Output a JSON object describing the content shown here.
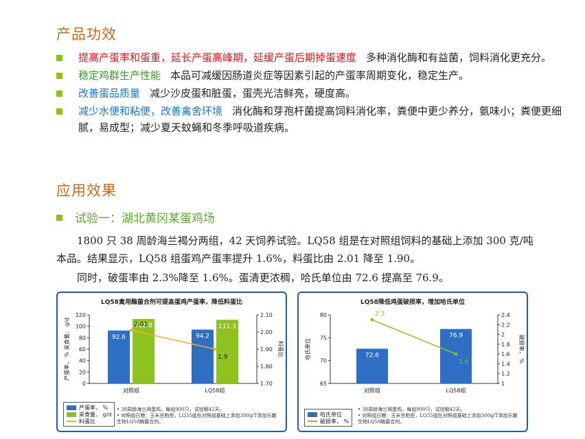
{
  "sections": {
    "effects_title": "产品功效",
    "application_title": "应用效果"
  },
  "bullets": [
    {
      "highlight": "提高产蛋率和蛋重，延长产蛋高峰期，延缓产蛋后期掉蛋速度",
      "color": "#e0151b",
      "text": "多种消化酶和有益菌，饲料消化更充分。"
    },
    {
      "highlight": "稳定鸡群生产性能",
      "color": "#3a9a2a",
      "text": "本品可减缓因肠道炎症等因素引起的产蛋率周期变化，稳定生产。"
    },
    {
      "highlight": "改善蛋品质量",
      "color": "#1c74c0",
      "text": "减少沙皮蛋和脏蛋，蛋壳光洁鲜亮，硬度高。"
    },
    {
      "highlight": "减少水便和粘便，改善禽舍环境",
      "color": "#1c74c0",
      "text": "消化酶和芽孢杆菌提高饲料消化率，粪便中更少养分，氨味小；粪便更细腻，易成型；减少夏天蚊蝇和冬季呼吸道疾病。"
    }
  ],
  "trial": {
    "title": "试验一：湖北黄冈某蛋鸡场",
    "para1": "1800 只 38 周龄海兰褐分两组，42 天饲养试验。LQ58 组是在对照组饲料的基础上添加 300 克/吨本品。结果显示，LQ58 组蛋鸡产蛋率提升 1.6%，料蛋比由 2.01 降至 1.90。",
    "para2": "同时，破蛋率由 2.3%降至 1.6%。蛋清更浓稠，哈氏单位由 72.6 提高至 76.9。"
  },
  "chart_data": [
    {
      "type": "bar",
      "title": "LQ58禽用酶菌合剂可提高蛋鸡产蛋率，降低料蛋比",
      "categories": [
        "对照组",
        "LQ58组"
      ],
      "series": [
        {
          "name": "产蛋率，%",
          "values": [
            92.6,
            94.2
          ],
          "color": "#2e6fc4",
          "axis": "left"
        },
        {
          "name": "采食量，g/d",
          "values": [
            112.8,
            111.3
          ],
          "color": "#8dc21f",
          "axis": "left"
        },
        {
          "name": "料蛋比",
          "values": [
            2.01,
            1.9
          ],
          "color": "#f5b41e",
          "axis": "right",
          "kind": "line"
        }
      ],
      "ylabel": "产蛋率， %  采食量， g/d",
      "y2label": "料蛋比",
      "ylim": [
        0,
        120
      ],
      "yticks": [
        "0",
        "20",
        "40",
        "60",
        "80",
        "100",
        "120"
      ],
      "y2lim": [
        1.7,
        2.1
      ],
      "y2ticks": [
        "1.70",
        "1.80",
        "1.90",
        "2.00",
        "2.10"
      ],
      "legend": [
        {
          "label": "产蛋率， %",
          "color": "#2e6fc4"
        },
        {
          "label": "采食量， g/d",
          "color": "#8dc21f"
        },
        {
          "label": "料蛋比",
          "color": "#f5b41e"
        }
      ],
      "notes": [
        "• 38周龄海兰褐蛋鸡，每组900只，试验期42天。",
        "• 对照组日粮：玉米豆粕型，LQ35组在对照组基础上添加300g/T添加乐趣生物LQ58酶菌合剂。"
      ]
    },
    {
      "type": "bar",
      "title": "LQ58降低鸡蛋破损率，增加哈氏单位",
      "categories": [
        "对照组",
        "LQ58组"
      ],
      "series": [
        {
          "name": "哈氏单位",
          "values": [
            72.6,
            76.9
          ],
          "color": "#2e6fc4",
          "axis": "left"
        },
        {
          "name": "破损率， %",
          "values": [
            2.3,
            1.6
          ],
          "color": "#8dc21f",
          "axis": "right",
          "kind": "line"
        }
      ],
      "ylabel": "哈氏单位",
      "y2label": "破损率， %",
      "ylim": [
        65,
        80
      ],
      "yticks": [
        "65",
        "70",
        "75",
        "80"
      ],
      "y2lim": [
        1,
        2.4
      ],
      "y2ticks": [
        "1",
        "1.2",
        "1.4",
        "1.6",
        "1.8",
        "2",
        "2.2",
        "2.4"
      ],
      "legend": [
        {
          "label": "哈氏单位",
          "color": "#2e6fc4"
        },
        {
          "label": "破损率， %",
          "color": "#8dc21f"
        }
      ],
      "notes": [
        "• 38周龄海兰褐蛋鸡，每组900只，试验期42天。",
        "• 对照组日粮：玉米豆粕型，LQ35组在对照组基础上添加300g/T添加乐趣生物LQ58酶菌合剂。"
      ]
    }
  ]
}
